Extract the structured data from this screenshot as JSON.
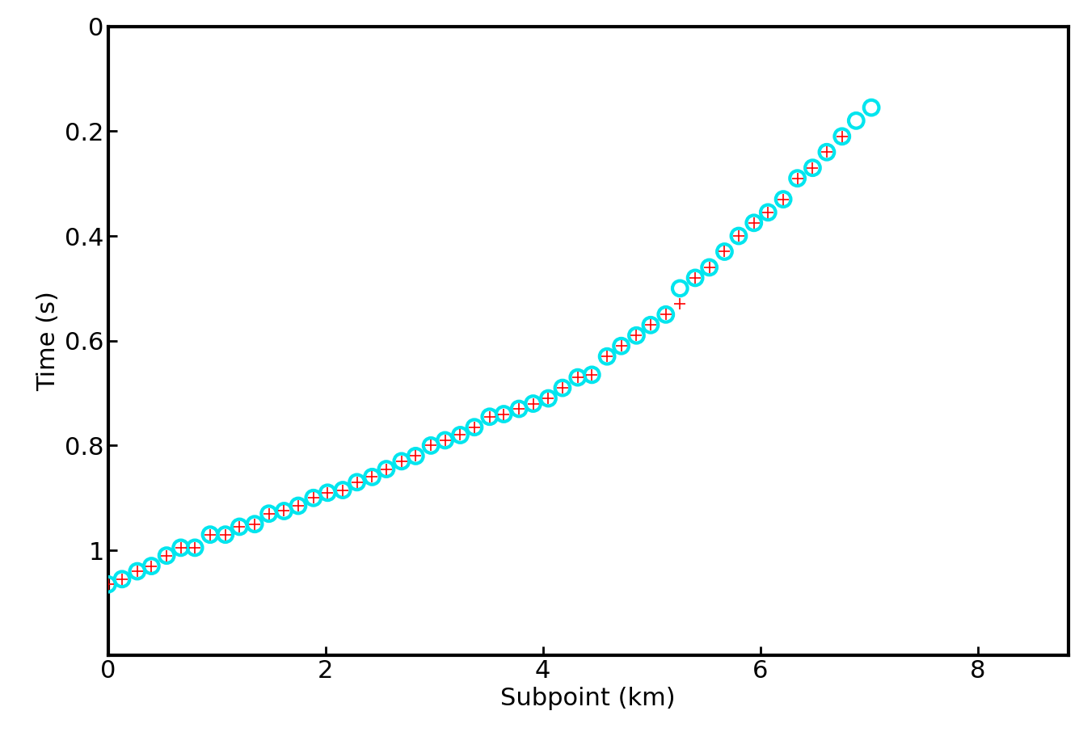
{
  "chart_data": {
    "type": "scatter",
    "x_label": "Subpoint (km)",
    "y_label": "Time (s)",
    "x": [
      0,
      0.13,
      0.27,
      0.4,
      0.54,
      0.67,
      0.8,
      0.94,
      1.08,
      1.21,
      1.35,
      1.48,
      1.62,
      1.75,
      1.89,
      2.02,
      2.16,
      2.29,
      2.43,
      2.56,
      2.7,
      2.83,
      2.97,
      3.1,
      3.24,
      3.37,
      3.51,
      3.64,
      3.78,
      3.91,
      4.05,
      4.18,
      4.32,
      4.45,
      4.59,
      4.72,
      4.86,
      4.99,
      5.13,
      5.26,
      5.4,
      5.53,
      5.67,
      5.8,
      5.94,
      6.07,
      6.21,
      6.34,
      6.48,
      6.61,
      6.75,
      6.88,
      7.02
    ],
    "series": [
      {
        "color": "#00e5ee",
        "marker": "circle",
        "values": [
          1.065,
          1.055,
          1.04,
          1.03,
          1.01,
          0.995,
          0.995,
          0.97,
          0.97,
          0.955,
          0.95,
          0.93,
          0.925,
          0.915,
          0.9,
          0.89,
          0.885,
          0.87,
          0.86,
          0.845,
          0.83,
          0.82,
          0.8,
          0.79,
          0.78,
          0.765,
          0.745,
          0.74,
          0.73,
          0.72,
          0.71,
          0.69,
          0.67,
          0.665,
          0.63,
          0.61,
          0.59,
          0.57,
          0.55,
          0.5,
          0.48,
          0.46,
          0.43,
          0.4,
          0.375,
          0.355,
          0.33,
          0.29,
          0.27,
          0.24,
          0.21,
          0.18,
          0.155
        ]
      },
      {
        "color": "#ff0000",
        "marker": "plus",
        "values": [
          1.065,
          1.055,
          1.04,
          1.03,
          1.01,
          0.995,
          0.995,
          0.97,
          0.97,
          0.955,
          0.95,
          0.93,
          0.925,
          0.915,
          0.9,
          0.89,
          0.885,
          0.87,
          0.86,
          0.845,
          0.83,
          0.82,
          0.8,
          0.79,
          0.78,
          0.765,
          0.745,
          0.74,
          0.73,
          0.72,
          0.71,
          0.69,
          0.67,
          0.665,
          0.63,
          0.61,
          0.59,
          0.57,
          0.55,
          0.53,
          0.48,
          0.46,
          0.43,
          0.4,
          0.375,
          0.355,
          0.33,
          0.29,
          0.27,
          0.24,
          0.21,
          null,
          null
        ]
      }
    ],
    "xlim": [
      0,
      8.83
    ],
    "xticks": [
      0,
      2,
      4,
      6,
      8
    ],
    "ylim": [
      1.2,
      0
    ],
    "yticks": [
      0,
      0.2,
      0.4,
      0.6,
      0.8,
      1
    ],
    "grid": false
  }
}
